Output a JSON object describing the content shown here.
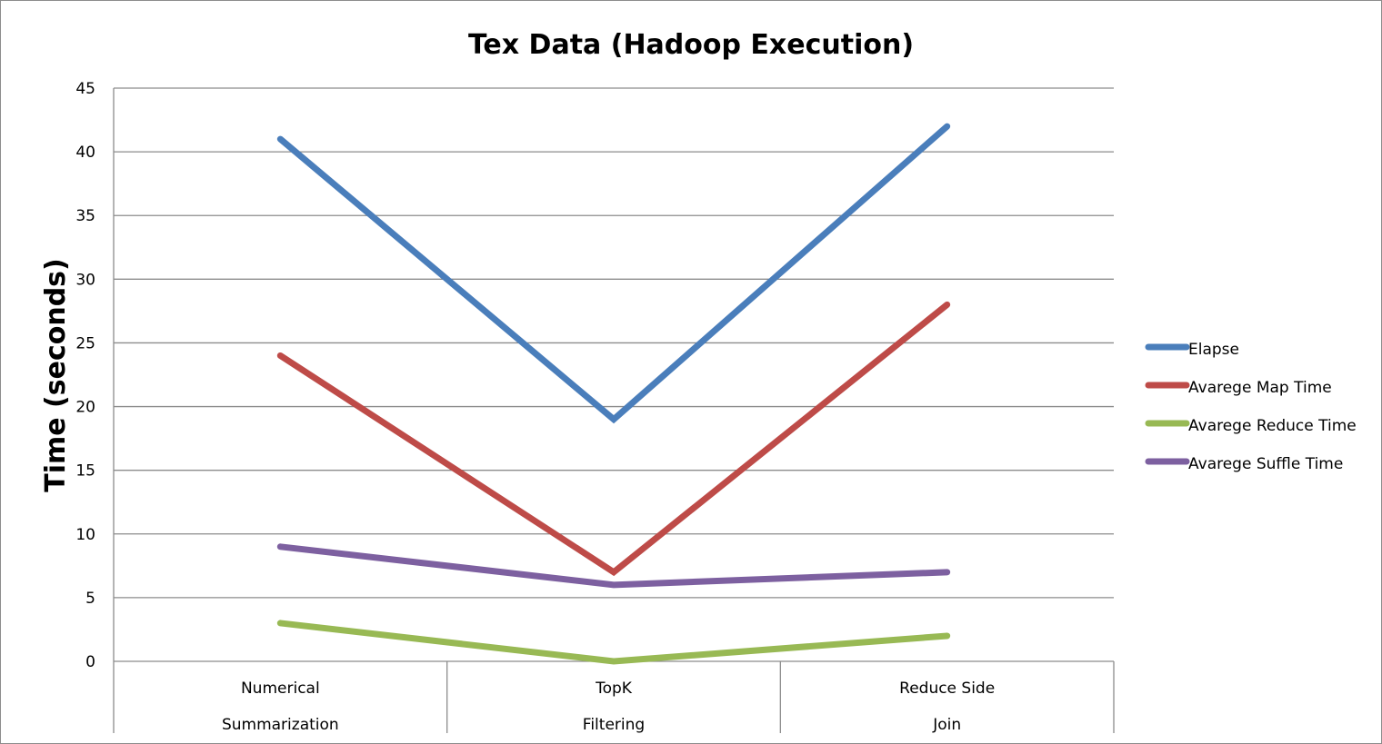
{
  "chart_data": {
    "type": "line",
    "title": "Tex Data (Hadoop Execution)",
    "xlabel": "",
    "ylabel": "Time (seconds)",
    "ylim": [
      0,
      45
    ],
    "yticks": [
      0,
      5,
      10,
      15,
      20,
      25,
      30,
      35,
      40,
      45
    ],
    "grid": true,
    "legend_position": "right",
    "categories": [
      [
        "Numerical",
        "Summarization"
      ],
      [
        "TopK",
        "Filtering"
      ],
      [
        "Reduce Side",
        "Join"
      ]
    ],
    "series": [
      {
        "name": "Elapse",
        "color": "#4a7ebb",
        "values": [
          41,
          19,
          42
        ]
      },
      {
        "name": "Avarege Map Time",
        "color": "#be4b48",
        "values": [
          24,
          7,
          28
        ]
      },
      {
        "name": "Avarege Reduce Time",
        "color": "#98b954",
        "values": [
          3,
          0,
          2
        ]
      },
      {
        "name": "Avarege Suffle Time",
        "color": "#7d60a0",
        "values": [
          9,
          6,
          7
        ]
      }
    ]
  }
}
